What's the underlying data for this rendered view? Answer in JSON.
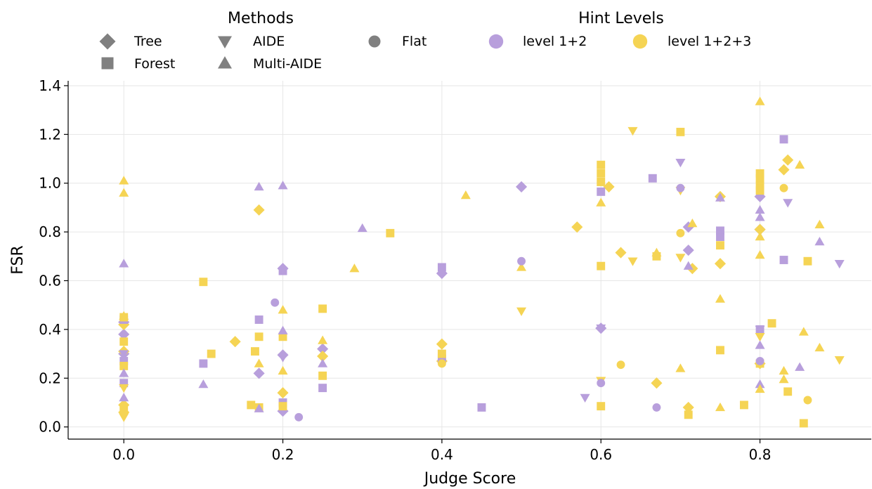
{
  "chart_data": {
    "type": "scatter",
    "xlabel": "Judge Score",
    "ylabel": "FSR",
    "xlim": [
      -0.07,
      0.94
    ],
    "ylim": [
      -0.05,
      1.42
    ],
    "xticks": [
      "0.0",
      "0.2",
      "0.4",
      "0.6",
      "0.8"
    ],
    "xtick_values": [
      0.0,
      0.2,
      0.4,
      0.6,
      0.8
    ],
    "yticks": [
      "0.0",
      "0.2",
      "0.4",
      "0.6",
      "0.8",
      "1.0",
      "1.2",
      "1.4"
    ],
    "ytick_values": [
      0.0,
      0.2,
      0.4,
      0.6,
      0.8,
      1.0,
      1.2,
      1.4
    ],
    "grid": true,
    "colors": {
      "level12": "#b89fdc",
      "level123": "#f5d454"
    },
    "legend": {
      "methods_title": "Methods",
      "hints_title": "Hint Levels",
      "methods": [
        {
          "key": "tree",
          "label": "Tree"
        },
        {
          "key": "forest",
          "label": "Forest"
        },
        {
          "key": "aide",
          "label": "AIDE"
        },
        {
          "key": "multi",
          "label": "Multi-AIDE"
        },
        {
          "key": "flat",
          "label": "Flat"
        }
      ],
      "hints": [
        {
          "key": "level12",
          "label": "level 1+2"
        },
        {
          "key": "level123",
          "label": "level 1+2+3"
        }
      ]
    },
    "series": [
      {
        "method": "tree",
        "hint": "level12",
        "points": [
          [
            0.0,
            0.43
          ],
          [
            0.0,
            0.38
          ],
          [
            0.0,
            0.3
          ],
          [
            0.17,
            0.22
          ],
          [
            0.2,
            0.65
          ],
          [
            0.2,
            0.295
          ],
          [
            0.2,
            0.065
          ],
          [
            0.25,
            0.32
          ],
          [
            0.4,
            0.63
          ],
          [
            0.5,
            0.985
          ],
          [
            0.6,
            0.405
          ],
          [
            0.71,
            0.82
          ],
          [
            0.71,
            0.725
          ],
          [
            0.8,
            0.945
          ],
          [
            0.8,
            0.81
          ]
        ]
      },
      {
        "method": "tree",
        "hint": "level123",
        "points": [
          [
            0.0,
            0.42
          ],
          [
            0.0,
            0.31
          ],
          [
            0.0,
            0.09
          ],
          [
            0.0,
            0.06
          ],
          [
            0.14,
            0.35
          ],
          [
            0.17,
            0.89
          ],
          [
            0.2,
            0.14
          ],
          [
            0.25,
            0.29
          ],
          [
            0.4,
            0.34
          ],
          [
            0.4,
            0.27
          ],
          [
            0.57,
            0.82
          ],
          [
            0.61,
            0.985
          ],
          [
            0.625,
            0.715
          ],
          [
            0.67,
            0.18
          ],
          [
            0.71,
            0.08
          ],
          [
            0.715,
            0.65
          ],
          [
            0.75,
            0.945
          ],
          [
            0.75,
            0.67
          ],
          [
            0.8,
            0.81
          ],
          [
            0.8,
            0.26
          ],
          [
            0.83,
            1.055
          ],
          [
            0.835,
            1.095
          ]
        ]
      },
      {
        "method": "forest",
        "hint": "level12",
        "points": [
          [
            0.0,
            0.44
          ],
          [
            0.0,
            0.27
          ],
          [
            0.0,
            0.18
          ],
          [
            0.1,
            0.26
          ],
          [
            0.17,
            0.44
          ],
          [
            0.2,
            0.64
          ],
          [
            0.2,
            0.1
          ],
          [
            0.25,
            0.16
          ],
          [
            0.4,
            0.655
          ],
          [
            0.4,
            0.28
          ],
          [
            0.45,
            0.08
          ],
          [
            0.6,
            0.965
          ],
          [
            0.665,
            1.02
          ],
          [
            0.75,
            0.805
          ],
          [
            0.75,
            0.78
          ],
          [
            0.8,
            0.4
          ],
          [
            0.83,
            1.18
          ],
          [
            0.83,
            0.685
          ]
        ]
      },
      {
        "method": "forest",
        "hint": "level123",
        "points": [
          [
            0.0,
            0.45
          ],
          [
            0.0,
            0.35
          ],
          [
            0.0,
            0.25
          ],
          [
            0.0,
            0.08
          ],
          [
            0.1,
            0.595
          ],
          [
            0.11,
            0.3
          ],
          [
            0.16,
            0.09
          ],
          [
            0.165,
            0.31
          ],
          [
            0.17,
            0.37
          ],
          [
            0.17,
            0.08
          ],
          [
            0.2,
            0.37
          ],
          [
            0.2,
            0.085
          ],
          [
            0.25,
            0.485
          ],
          [
            0.25,
            0.21
          ],
          [
            0.335,
            0.795
          ],
          [
            0.4,
            0.3
          ],
          [
            0.6,
            1.075
          ],
          [
            0.6,
            1.04
          ],
          [
            0.6,
            1.005
          ],
          [
            0.6,
            0.66
          ],
          [
            0.6,
            0.085
          ],
          [
            0.67,
            0.7
          ],
          [
            0.7,
            1.21
          ],
          [
            0.71,
            0.05
          ],
          [
            0.75,
            0.745
          ],
          [
            0.75,
            0.315
          ],
          [
            0.78,
            0.09
          ],
          [
            0.8,
            1.04
          ],
          [
            0.8,
            1.02
          ],
          [
            0.8,
            0.99
          ],
          [
            0.8,
            0.97
          ],
          [
            0.8,
            0.26
          ],
          [
            0.815,
            0.425
          ],
          [
            0.835,
            0.145
          ],
          [
            0.855,
            0.015
          ],
          [
            0.86,
            0.68
          ]
        ]
      },
      {
        "method": "aide",
        "hint": "level12",
        "points": [
          [
            0.0,
            0.3
          ],
          [
            0.2,
            0.285
          ],
          [
            0.58,
            0.12
          ],
          [
            0.6,
            0.405
          ],
          [
            0.7,
            1.085
          ],
          [
            0.8,
            0.4
          ],
          [
            0.835,
            0.92
          ],
          [
            0.9,
            0.67
          ]
        ]
      },
      {
        "method": "aide",
        "hint": "level123",
        "points": [
          [
            0.0,
            0.16
          ],
          [
            0.0,
            0.04
          ],
          [
            0.5,
            0.475
          ],
          [
            0.6,
            0.19
          ],
          [
            0.64,
            1.215
          ],
          [
            0.64,
            0.68
          ],
          [
            0.7,
            0.97
          ],
          [
            0.7,
            0.695
          ],
          [
            0.8,
            0.37
          ],
          [
            0.9,
            0.275
          ]
        ]
      },
      {
        "method": "multi",
        "hint": "level12",
        "points": [
          [
            0.0,
            0.67
          ],
          [
            0.0,
            0.22
          ],
          [
            0.0,
            0.12
          ],
          [
            0.1,
            0.175
          ],
          [
            0.17,
            0.985
          ],
          [
            0.17,
            0.075
          ],
          [
            0.2,
            0.99
          ],
          [
            0.2,
            0.395
          ],
          [
            0.25,
            0.26
          ],
          [
            0.3,
            0.815
          ],
          [
            0.71,
            0.66
          ],
          [
            0.75,
            0.94
          ],
          [
            0.8,
            0.89
          ],
          [
            0.8,
            0.86
          ],
          [
            0.8,
            0.335
          ],
          [
            0.8,
            0.175
          ],
          [
            0.85,
            0.245
          ],
          [
            0.875,
            0.76
          ]
        ]
      },
      {
        "method": "multi",
        "hint": "level123",
        "points": [
          [
            0.0,
            1.01
          ],
          [
            0.0,
            0.96
          ],
          [
            0.0,
            0.455
          ],
          [
            0.17,
            0.26
          ],
          [
            0.2,
            0.48
          ],
          [
            0.2,
            0.23
          ],
          [
            0.25,
            0.355
          ],
          [
            0.29,
            0.65
          ],
          [
            0.43,
            0.95
          ],
          [
            0.5,
            0.655
          ],
          [
            0.6,
            0.92
          ],
          [
            0.67,
            0.715
          ],
          [
            0.7,
            0.24
          ],
          [
            0.715,
            0.835
          ],
          [
            0.75,
            0.525
          ],
          [
            0.75,
            0.08
          ],
          [
            0.8,
            1.335
          ],
          [
            0.8,
            0.78
          ],
          [
            0.8,
            0.705
          ],
          [
            0.8,
            0.155
          ],
          [
            0.83,
            0.23
          ],
          [
            0.83,
            0.195
          ],
          [
            0.85,
            1.075
          ],
          [
            0.855,
            0.39
          ],
          [
            0.875,
            0.83
          ],
          [
            0.875,
            0.325
          ]
        ]
      },
      {
        "method": "flat",
        "hint": "level12",
        "points": [
          [
            0.19,
            0.51
          ],
          [
            0.22,
            0.04
          ],
          [
            0.5,
            0.68
          ],
          [
            0.6,
            0.18
          ],
          [
            0.67,
            0.08
          ],
          [
            0.7,
            0.98
          ],
          [
            0.8,
            0.27
          ]
        ]
      },
      {
        "method": "flat",
        "hint": "level123",
        "points": [
          [
            0.4,
            0.26
          ],
          [
            0.625,
            0.255
          ],
          [
            0.7,
            0.795
          ],
          [
            0.83,
            0.98
          ],
          [
            0.86,
            0.11
          ]
        ]
      }
    ]
  }
}
